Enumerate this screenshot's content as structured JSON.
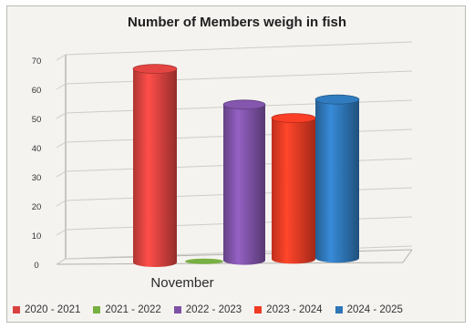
{
  "chart_data": {
    "type": "bar",
    "title": "Number of Members weigh in fish",
    "categories": [
      "November"
    ],
    "ylim": [
      0,
      70
    ],
    "yticks": [
      0,
      10,
      20,
      30,
      40,
      50,
      60,
      70
    ],
    "grid": true,
    "legend_position": "bottom",
    "series": [
      {
        "name": "2020 - 2021",
        "values": [
          67
        ],
        "color": "#d9423f"
      },
      {
        "name": "2021 - 2022",
        "values": [
          1
        ],
        "color": "#78b043"
      },
      {
        "name": "2022 - 2023",
        "values": [
          54
        ],
        "color": "#7e52a6"
      },
      {
        "name": "2023 - 2024",
        "values": [
          49
        ],
        "color": "#ef3b24"
      },
      {
        "name": "2024 - 2025",
        "values": [
          55
        ],
        "color": "#2f76b7"
      }
    ]
  }
}
